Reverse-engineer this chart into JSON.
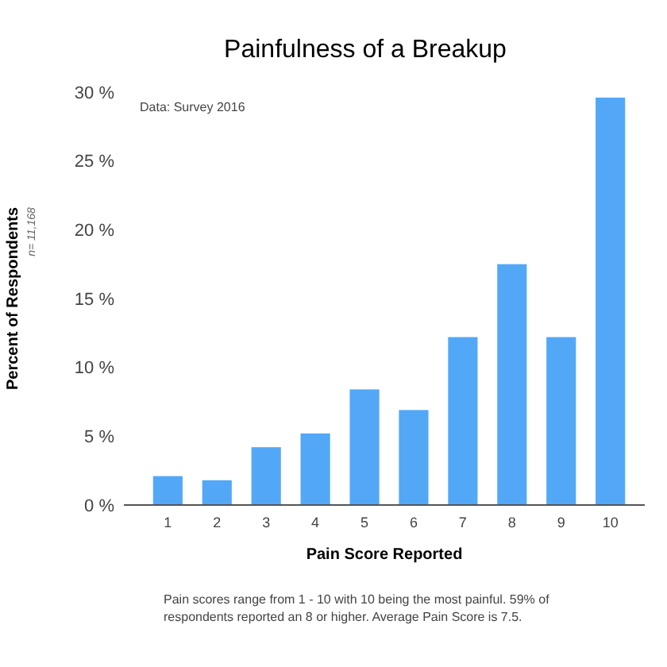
{
  "chart_data": {
    "type": "bar",
    "title": "Painfulness of a Breakup",
    "xlabel": "Pain Score Reported",
    "ylabel": "Percent of Respondents",
    "categories": [
      "1",
      "2",
      "3",
      "4",
      "5",
      "6",
      "7",
      "8",
      "9",
      "10"
    ],
    "values": [
      2.1,
      1.8,
      4.2,
      5.2,
      8.4,
      6.9,
      12.2,
      17.5,
      12.2,
      29.6
    ],
    "color": "#52a8f7",
    "ylim": [
      0,
      30
    ],
    "yticks": [
      {
        "value": 0,
        "label": "0 %"
      },
      {
        "value": 5,
        "label": "5 %"
      },
      {
        "value": 10,
        "label": "10 %"
      },
      {
        "value": 15,
        "label": "15 %"
      },
      {
        "value": 20,
        "label": "20 %"
      },
      {
        "value": 25,
        "label": "25 %"
      },
      {
        "value": 30,
        "label": "30 %"
      }
    ],
    "grid": false,
    "annotations": [
      "Data: Survey 2016",
      "n= 11,168",
      "Pain scores range from 1 - 10 with 10 being the most painful. 59% of respondents reported an 8 or higher. Average Pain Score is 7.5."
    ]
  }
}
